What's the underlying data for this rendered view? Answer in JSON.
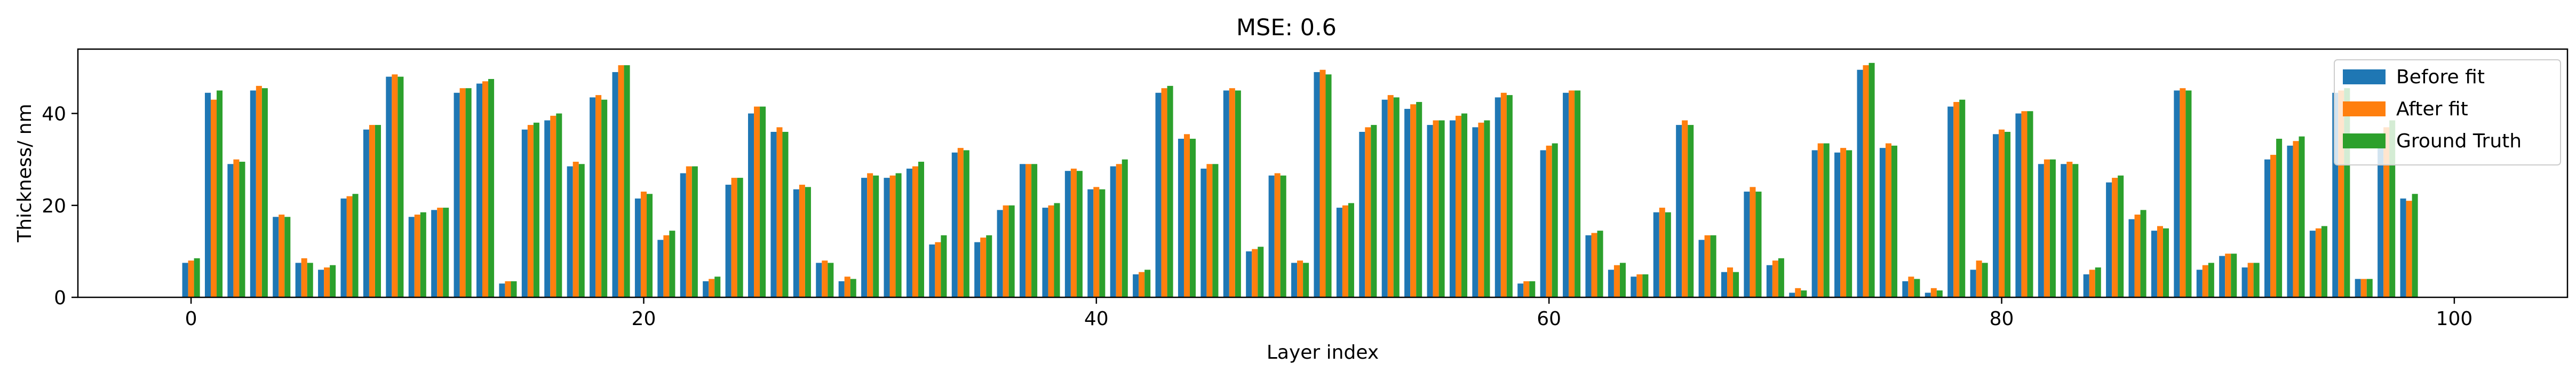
{
  "chart_data": {
    "type": "bar",
    "title": "MSE:  0.6",
    "xlabel": "Layer index",
    "ylabel": "Thickness/ nm",
    "xlim": [
      -5,
      105
    ],
    "ylim": [
      0,
      54
    ],
    "xticks": [
      0,
      20,
      40,
      60,
      80,
      100
    ],
    "yticks": [
      0,
      20,
      40
    ],
    "grid": false,
    "legend_position": "top-right",
    "categories": [
      0,
      1,
      2,
      3,
      4,
      5,
      6,
      7,
      8,
      9,
      10,
      11,
      12,
      13,
      14,
      15,
      16,
      17,
      18,
      19,
      20,
      21,
      22,
      23,
      24,
      25,
      26,
      27,
      28,
      29,
      30,
      31,
      32,
      33,
      34,
      35,
      36,
      37,
      38,
      39,
      40,
      41,
      42,
      43,
      44,
      45,
      46,
      47,
      48,
      49,
      50,
      51,
      52,
      53,
      54,
      55,
      56,
      57,
      58,
      59,
      60,
      61,
      62,
      63,
      64,
      65,
      66,
      67,
      68,
      69,
      70,
      71,
      72,
      73,
      74,
      75,
      76,
      77,
      78,
      79,
      80,
      81,
      82,
      83,
      84,
      85,
      86,
      87,
      88,
      89,
      90,
      91,
      92,
      93,
      94,
      95,
      96,
      97,
      98,
      99
    ],
    "series": [
      {
        "name": "Before fit",
        "color": "#1f77b4",
        "values": [
          7.5,
          44.5,
          29.0,
          45.0,
          17.5,
          7.5,
          6.0,
          21.5,
          36.5,
          48.0,
          17.5,
          19.0,
          44.5,
          46.5,
          3.0,
          36.5,
          38.5,
          28.5,
          43.5,
          49.0,
          21.5,
          12.5,
          27.0,
          3.5,
          24.5,
          40.0,
          36.0,
          23.5,
          7.5,
          3.5,
          26.0,
          26.0,
          28.0,
          11.5,
          31.5,
          12.0,
          19.0,
          29.0,
          19.5,
          27.5,
          23.5,
          28.5,
          5.0,
          44.5,
          34.5,
          28.0,
          45.0,
          10.0,
          26.5,
          7.5,
          49.0,
          19.5,
          36.0,
          43.0,
          41.0,
          37.5,
          38.5,
          37.0,
          43.5,
          3.0,
          32.0,
          44.5,
          13.5,
          6.0,
          4.5,
          18.5,
          37.5,
          12.5,
          5.5,
          23.0,
          7.0,
          1.0,
          32.0,
          31.5,
          49.5,
          32.5,
          3.5,
          1.0,
          41.5,
          6.0,
          35.5,
          40.0,
          29.0,
          29.0,
          5.0,
          25.0,
          17.0,
          14.5,
          45.0,
          6.0,
          9.0,
          6.5,
          30.0,
          33.0,
          14.5,
          44.5,
          4.0,
          35.0,
          21.5,
          0
        ]
      },
      {
        "name": "After fit",
        "color": "#ff7f0e",
        "values": [
          8.0,
          43.0,
          30.0,
          46.0,
          18.0,
          8.5,
          6.5,
          22.0,
          37.5,
          48.5,
          18.0,
          19.5,
          45.5,
          47.0,
          3.5,
          37.5,
          39.5,
          29.5,
          44.0,
          50.5,
          23.0,
          13.5,
          28.5,
          4.0,
          26.0,
          41.5,
          37.0,
          24.5,
          8.0,
          4.5,
          27.0,
          26.5,
          28.5,
          12.0,
          32.5,
          13.0,
          20.0,
          29.0,
          20.0,
          28.0,
          24.0,
          29.0,
          5.5,
          45.5,
          35.5,
          29.0,
          45.5,
          10.5,
          27.0,
          8.0,
          49.5,
          20.0,
          37.0,
          44.0,
          42.0,
          38.5,
          39.5,
          38.0,
          44.5,
          3.5,
          33.0,
          45.0,
          14.0,
          7.0,
          5.0,
          19.5,
          38.5,
          13.5,
          6.5,
          24.0,
          8.0,
          2.0,
          33.5,
          32.5,
          50.5,
          33.5,
          4.5,
          2.0,
          42.5,
          8.0,
          36.5,
          40.5,
          30.0,
          29.5,
          6.0,
          26.0,
          18.0,
          15.5,
          45.5,
          7.0,
          9.5,
          7.5,
          31.0,
          34.0,
          15.0,
          45.0,
          4.0,
          37.0,
          21.0,
          0
        ]
      },
      {
        "name": "Ground Truth",
        "color": "#2ca02c",
        "values": [
          8.5,
          45.0,
          29.5,
          45.5,
          17.5,
          7.5,
          7.0,
          22.5,
          37.5,
          48.0,
          18.5,
          19.5,
          45.5,
          47.5,
          3.5,
          38.0,
          40.0,
          29.0,
          43.0,
          50.5,
          22.5,
          14.5,
          28.5,
          4.5,
          26.0,
          41.5,
          36.0,
          24.0,
          7.5,
          4.0,
          26.5,
          27.0,
          29.5,
          13.5,
          32.0,
          13.5,
          20.0,
          29.0,
          20.5,
          27.5,
          23.5,
          30.0,
          6.0,
          46.0,
          34.5,
          29.0,
          45.0,
          11.0,
          26.5,
          7.5,
          48.5,
          20.5,
          37.5,
          43.5,
          42.5,
          38.5,
          40.0,
          38.5,
          44.0,
          3.5,
          33.5,
          45.0,
          14.5,
          7.5,
          5.0,
          18.5,
          37.5,
          13.5,
          5.5,
          23.0,
          8.5,
          1.5,
          33.5,
          32.0,
          51.0,
          33.0,
          4.0,
          1.5,
          43.0,
          7.5,
          36.0,
          40.5,
          30.0,
          29.0,
          6.5,
          26.5,
          19.0,
          15.0,
          45.0,
          7.5,
          9.5,
          7.5,
          34.5,
          35.0,
          15.5,
          45.5,
          4.0,
          38.5,
          22.5,
          0
        ]
      }
    ]
  }
}
